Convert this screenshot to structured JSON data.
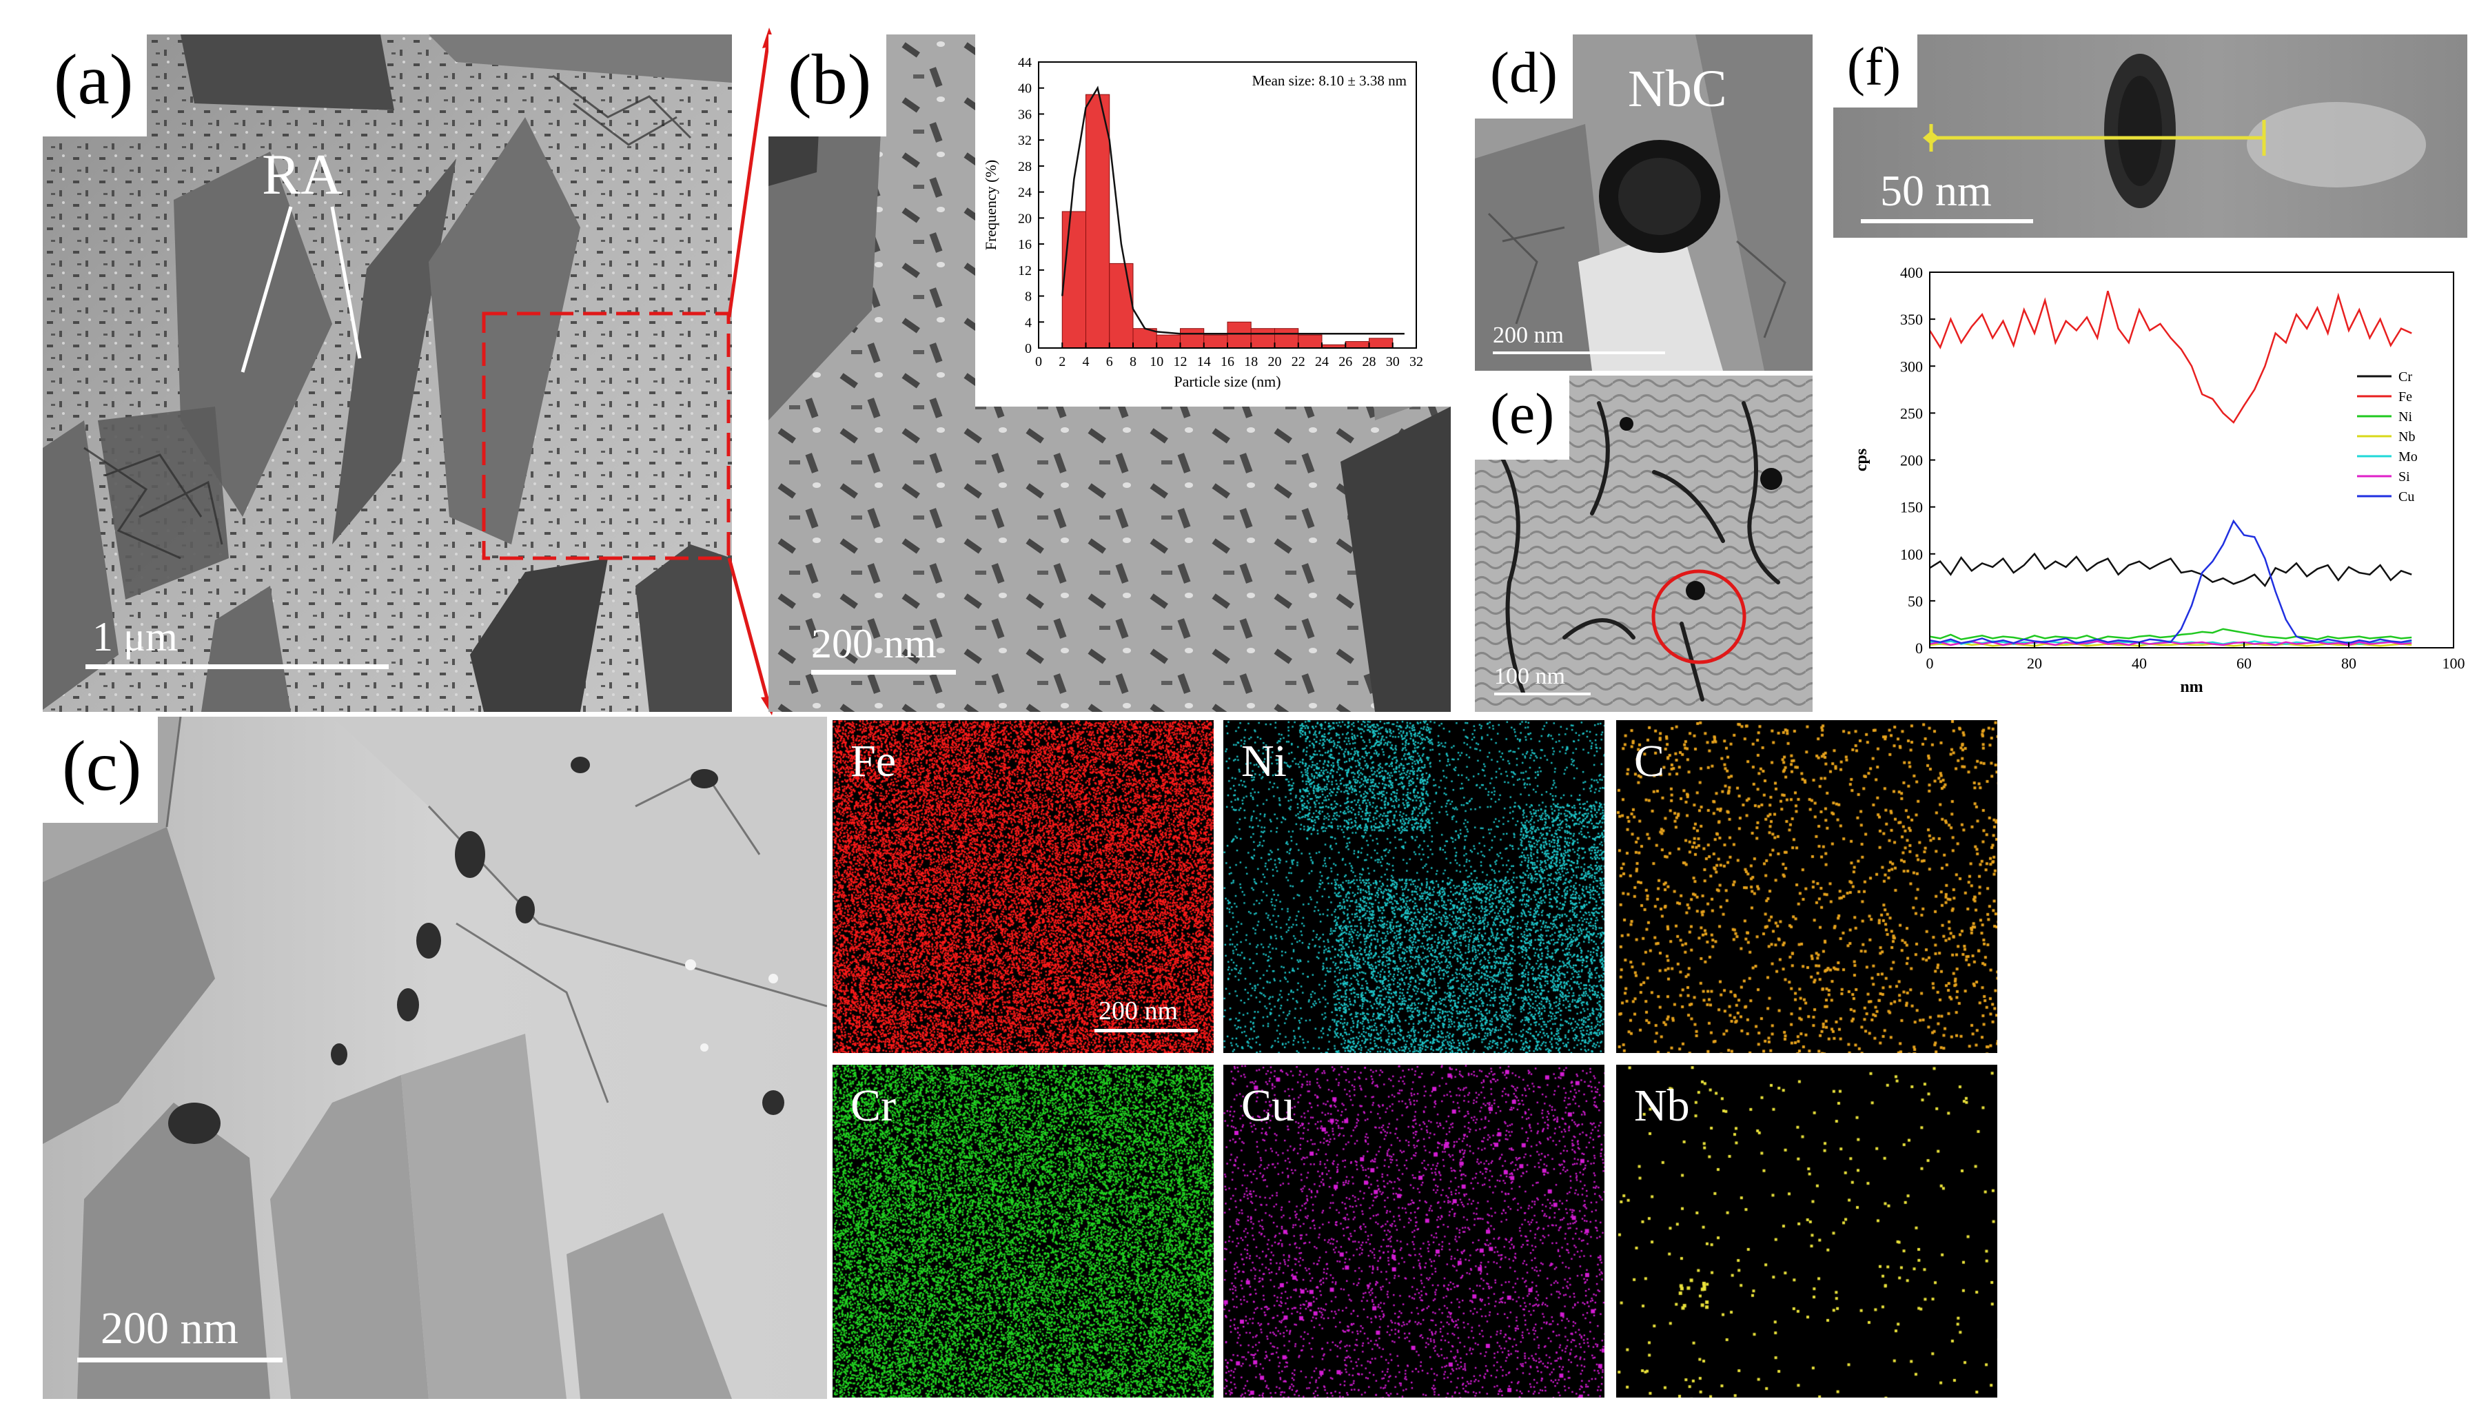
{
  "panels": {
    "a": {
      "label": "(a)",
      "annotation": "RA",
      "scale": "1 μm"
    },
    "b": {
      "label": "(b)",
      "scale": "200 nm"
    },
    "c": {
      "label": "(c)",
      "scale": "200 nm"
    },
    "d": {
      "label": "(d)",
      "annotation": "NbC",
      "scale": "200 nm"
    },
    "e": {
      "label": "(e)",
      "scale": "100 nm"
    },
    "f": {
      "label": "(f)",
      "scale": "50 nm"
    }
  },
  "eds_maps": [
    {
      "element": "Fe",
      "color": "#ff1a1a"
    },
    {
      "element": "Ni",
      "color": "#1ec8cc"
    },
    {
      "element": "C",
      "color": "#e6a21c"
    },
    {
      "element": "Cr",
      "color": "#22d622"
    },
    {
      "element": "Cu",
      "color": "#d21cd2"
    },
    {
      "element": "Nb",
      "color": "#e8e03a"
    }
  ],
  "eds_scale": "200 nm",
  "chart_data": [
    {
      "type": "bar",
      "mean_label": "Mean size: 8.10 ± 3.38 nm",
      "xlabel": "Particle size (nm)",
      "ylabel": "Frequency (%)",
      "xlim": [
        0,
        32
      ],
      "ylim": [
        0,
        44
      ],
      "xticks": [
        0,
        2,
        4,
        6,
        8,
        10,
        12,
        14,
        16,
        18,
        20,
        22,
        24,
        26,
        28,
        30,
        32
      ],
      "yticks": [
        0,
        4,
        8,
        12,
        16,
        20,
        24,
        28,
        32,
        36,
        40,
        44
      ],
      "x": [
        3,
        5,
        7,
        9,
        11,
        13,
        15,
        17,
        19,
        21,
        23,
        25,
        27,
        29
      ],
      "values": [
        21,
        39,
        13,
        3,
        2,
        3,
        2,
        4,
        3,
        3,
        2,
        0.5,
        1,
        1.5
      ],
      "bar_color": "#e83a3a",
      "fit_line": {
        "x": [
          2,
          3,
          4,
          5,
          6,
          7,
          8,
          9,
          10,
          12,
          16,
          20,
          24,
          28,
          31
        ],
        "y": [
          8,
          26,
          37,
          40,
          32,
          16,
          6,
          3,
          2.5,
          2.2,
          2.2,
          2.2,
          2.2,
          2.2,
          2.2
        ]
      }
    },
    {
      "type": "line",
      "xlabel": "nm",
      "ylabel": "cps",
      "xlim": [
        0,
        100
      ],
      "ylim": [
        0,
        400
      ],
      "xticks": [
        0,
        20,
        40,
        60,
        80,
        100
      ],
      "yticks": [
        0,
        50,
        100,
        150,
        200,
        250,
        300,
        350,
        400
      ],
      "x": [
        0,
        2,
        4,
        6,
        8,
        10,
        12,
        14,
        16,
        18,
        20,
        22,
        24,
        26,
        28,
        30,
        32,
        34,
        36,
        38,
        40,
        42,
        44,
        46,
        48,
        50,
        52,
        54,
        56,
        58,
        60,
        62,
        64,
        66,
        68,
        70,
        72,
        74,
        76,
        78,
        80,
        82,
        84,
        86,
        88,
        90,
        92
      ],
      "series": [
        {
          "name": "Cr",
          "color": "#111111",
          "values": [
            85,
            92,
            78,
            96,
            82,
            90,
            86,
            95,
            80,
            88,
            100,
            84,
            92,
            86,
            97,
            82,
            90,
            95,
            78,
            88,
            92,
            84,
            90,
            95,
            80,
            82,
            78,
            70,
            74,
            68,
            72,
            78,
            66,
            85,
            80,
            90,
            76,
            84,
            88,
            72,
            86,
            80,
            78,
            88,
            72,
            82,
            78
          ]
        },
        {
          "name": "Fe",
          "color": "#e82020",
          "values": [
            338,
            320,
            350,
            325,
            342,
            355,
            330,
            348,
            322,
            360,
            335,
            370,
            325,
            348,
            338,
            352,
            330,
            380,
            340,
            325,
            360,
            338,
            345,
            330,
            318,
            300,
            270,
            265,
            250,
            240,
            258,
            275,
            300,
            335,
            325,
            355,
            340,
            362,
            335,
            375,
            338,
            360,
            330,
            350,
            322,
            340,
            335
          ]
        },
        {
          "name": "Ni",
          "color": "#20c820",
          "values": [
            12,
            10,
            14,
            9,
            11,
            13,
            10,
            12,
            11,
            9,
            13,
            10,
            12,
            11,
            10,
            13,
            9,
            12,
            11,
            10,
            12,
            13,
            11,
            12,
            14,
            15,
            17,
            16,
            20,
            18,
            16,
            14,
            12,
            11,
            10,
            12,
            11,
            9,
            12,
            10,
            11,
            12,
            10,
            11,
            12,
            10,
            11
          ]
        },
        {
          "name": "Nb",
          "color": "#d8d81a",
          "values": [
            3,
            4,
            3,
            5,
            3,
            4,
            2,
            3,
            4,
            3,
            2,
            4,
            3,
            3,
            4,
            2,
            3,
            4,
            3,
            3,
            2,
            4,
            3,
            3,
            4,
            3,
            3,
            4,
            3,
            2,
            3,
            4,
            3,
            3,
            4,
            3,
            2,
            3,
            4,
            3,
            3,
            4,
            3,
            2,
            3,
            4,
            3
          ]
        },
        {
          "name": "Mo",
          "color": "#20d8d8",
          "values": [
            6,
            5,
            7,
            4,
            6,
            5,
            7,
            6,
            4,
            6,
            5,
            7,
            6,
            5,
            6,
            4,
            7,
            5,
            6,
            6,
            5,
            4,
            6,
            7,
            5,
            6,
            5,
            6,
            4,
            6,
            5,
            7,
            5,
            6,
            4,
            6,
            5,
            7,
            6,
            5,
            6,
            4,
            5,
            6,
            7,
            5,
            6
          ]
        },
        {
          "name": "Si",
          "color": "#e020c8",
          "values": [
            4,
            6,
            3,
            5,
            7,
            4,
            6,
            3,
            5,
            4,
            6,
            5,
            3,
            6,
            4,
            5,
            7,
            4,
            5,
            3,
            6,
            4,
            5,
            6,
            4,
            5,
            6,
            4,
            3,
            5,
            6,
            4,
            5,
            3,
            6,
            4,
            5,
            6,
            4,
            5,
            3,
            6,
            4,
            5,
            6,
            4,
            5
          ]
        },
        {
          "name": "Cu",
          "color": "#2030e0",
          "values": [
            8,
            6,
            9,
            5,
            7,
            10,
            6,
            8,
            5,
            9,
            7,
            6,
            8,
            10,
            5,
            7,
            9,
            6,
            8,
            7,
            6,
            9,
            8,
            6,
            20,
            45,
            80,
            92,
            110,
            135,
            120,
            118,
            95,
            60,
            30,
            12,
            8,
            6,
            9,
            7,
            5,
            8,
            6,
            9,
            7,
            6,
            8
          ]
        }
      ]
    }
  ]
}
